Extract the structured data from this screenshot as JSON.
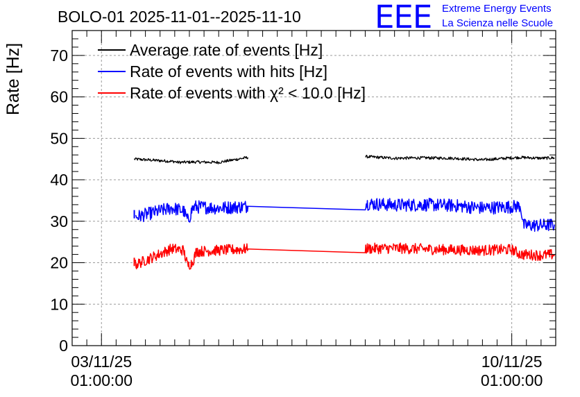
{
  "logo": {
    "mark": "EEE",
    "line1": "Extreme Energy Events",
    "line2": "La Scienza nelle Scuole",
    "color": "#0000ff"
  },
  "chart_data": {
    "type": "line",
    "title": "BOLO-01 2025-11-01--2025-11-10",
    "ylabel": "Rate [Hz]",
    "xlabel": "",
    "ylim": [
      0,
      76
    ],
    "xlim_days": [
      -0.5,
      7.75
    ],
    "yticks": [
      0,
      10,
      20,
      30,
      40,
      50,
      60,
      70
    ],
    "xticks": [
      {
        "day": 0,
        "line1": "03/11/25",
        "line2": "01:00:00"
      },
      {
        "day": 7,
        "line1": "10/11/25",
        "line2": "01:00:00"
      }
    ],
    "grid": true,
    "legend_position": "top-left",
    "x_unit": "days since 03/11/25 01:00:00",
    "series": [
      {
        "name": "Average rate of events [Hz]",
        "color": "#000000",
        "noise": 0.35,
        "segments": [
          {
            "x": [
              0.56,
              1.25,
              1.3,
              1.6,
              2.0,
              2.5
            ],
            "y": [
              45.0,
              44.4,
              44.2,
              44.3,
              44.2,
              45.4
            ]
          },
          {
            "x": [
              4.5,
              5.0,
              5.5,
              6.0,
              6.5,
              7.0,
              7.15,
              7.5,
              7.73
            ],
            "y": [
              45.6,
              45.2,
              45.3,
              45.2,
              44.8,
              45.3,
              45.4,
              45.2,
              45.3
            ]
          }
        ]
      },
      {
        "name": "Rate of events with hits [Hz]",
        "color": "#0000ff",
        "noise": 1.6,
        "segments": [
          {
            "x": [
              0.56
            ],
            "y": [
              31.7
            ]
          },
          {
            "x": [
              0.58,
              1.2,
              1.4,
              1.48,
              1.55,
              1.6,
              2.0,
              2.5,
              4.5,
              5.0,
              5.5,
              6.0,
              6.5,
              7.0,
              7.15,
              7.2,
              7.5,
              7.73
            ],
            "y": [
              31.0,
              33.2,
              32.5,
              30.0,
              33.0,
              33.5,
              33.2,
              33.6,
              34.3,
              33.9,
              34.0,
              33.8,
              33.2,
              33.5,
              33.7,
              29.0,
              29.0,
              29.2
            ]
          }
        ]
      },
      {
        "name": "Rate of events with χ² < 10.0 [Hz]",
        "color": "#ff0000",
        "noise": 1.3,
        "segments": [
          {
            "x": [
              0.56
            ],
            "y": [
              20.2
            ]
          },
          {
            "x": [
              0.58,
              1.2,
              1.4,
              1.47,
              1.55,
              1.62,
              2.0,
              2.5,
              4.5,
              5.0,
              5.5,
              6.0,
              6.5,
              7.0,
              7.15,
              7.5,
              7.73
            ],
            "y": [
              19.5,
              23.4,
              23.0,
              19.3,
              20.0,
              22.7,
              23.0,
              23.3,
              23.4,
              23.5,
              23.3,
              23.1,
              23.0,
              23.2,
              22.0,
              21.8,
              22.0
            ]
          }
        ]
      }
    ]
  }
}
